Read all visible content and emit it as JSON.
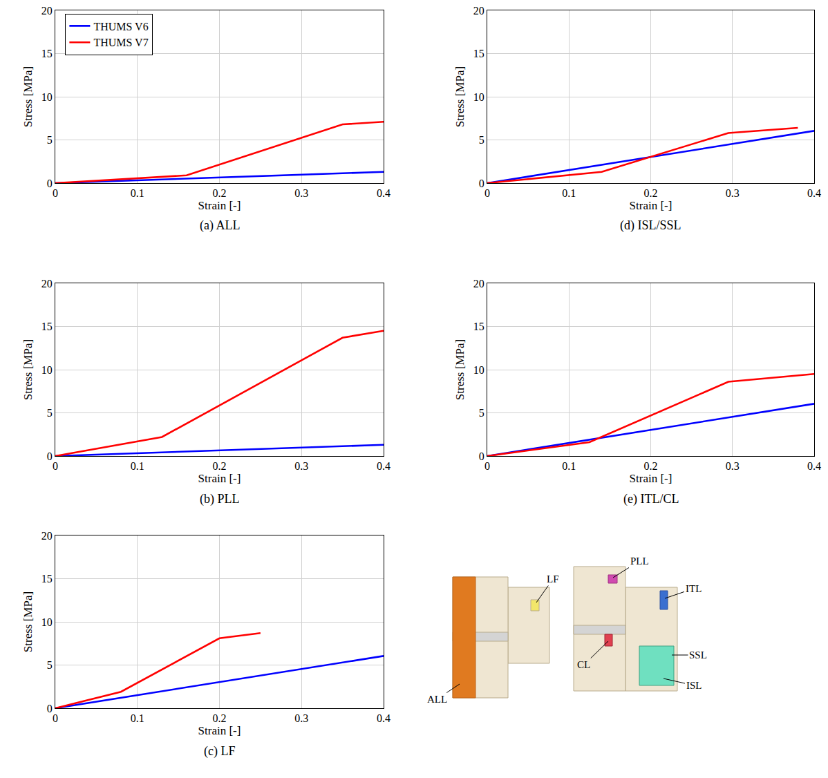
{
  "chart_data": [
    {
      "type": "line",
      "title": "(a) ALL",
      "x_label": "Strain [-]",
      "y_label": "Stress [MPa]",
      "xlim": [
        0,
        0.4
      ],
      "xticks": [
        0,
        0.1,
        0.2,
        0.3,
        0.4
      ],
      "ylim": [
        0,
        20
      ],
      "yticks": [
        0,
        5,
        10,
        15,
        20
      ],
      "grid": true,
      "legend": "upper left",
      "series": [
        {
          "name": "THUMS V6",
          "color": "#0000ff",
          "x": [
            0,
            0.4
          ],
          "values": [
            0,
            1.3
          ]
        },
        {
          "name": "THUMS V7",
          "color": "#ff0000",
          "x": [
            0,
            0.16,
            0.35,
            0.4
          ],
          "values": [
            0,
            0.9,
            6.8,
            7.1
          ]
        }
      ]
    },
    {
      "type": "line",
      "title": "(b) PLL",
      "x_label": "Strain [-]",
      "y_label": "Stress [MPa]",
      "xlim": [
        0,
        0.4
      ],
      "xticks": [
        0,
        0.1,
        0.2,
        0.3,
        0.4
      ],
      "ylim": [
        0,
        20
      ],
      "yticks": [
        0,
        5,
        10,
        15,
        20
      ],
      "grid": true,
      "series": [
        {
          "name": "THUMS V6",
          "color": "#0000ff",
          "x": [
            0,
            0.4
          ],
          "values": [
            0,
            1.3
          ]
        },
        {
          "name": "THUMS V7",
          "color": "#ff0000",
          "x": [
            0,
            0.13,
            0.35,
            0.4
          ],
          "values": [
            0,
            2.2,
            13.7,
            14.5
          ]
        }
      ]
    },
    {
      "type": "line",
      "title": "(c) LF",
      "x_label": "Strain [-]",
      "y_label": "Stress [MPa]",
      "xlim": [
        0,
        0.4
      ],
      "xticks": [
        0,
        0.1,
        0.2,
        0.3,
        0.4
      ],
      "ylim": [
        0,
        20
      ],
      "yticks": [
        0,
        5,
        10,
        15,
        20
      ],
      "grid": true,
      "series": [
        {
          "name": "THUMS V6",
          "color": "#0000ff",
          "x": [
            0,
            0.4
          ],
          "values": [
            0,
            6.05
          ]
        },
        {
          "name": "THUMS V7",
          "color": "#ff0000",
          "x": [
            0,
            0.08,
            0.2,
            0.25
          ],
          "values": [
            0,
            1.9,
            8.1,
            8.7
          ]
        }
      ]
    },
    {
      "type": "line",
      "title": "(d) ISL/SSL",
      "x_label": "Strain [-]",
      "y_label": "Stress [MPa]",
      "xlim": [
        0,
        0.4
      ],
      "xticks": [
        0,
        0.1,
        0.2,
        0.3,
        0.4
      ],
      "ylim": [
        0,
        20
      ],
      "yticks": [
        0,
        5,
        10,
        15,
        20
      ],
      "grid": true,
      "series": [
        {
          "name": "THUMS V6",
          "color": "#0000ff",
          "x": [
            0,
            0.4
          ],
          "values": [
            0,
            6.05
          ]
        },
        {
          "name": "THUMS V7",
          "color": "#ff0000",
          "x": [
            0,
            0.14,
            0.295,
            0.38
          ],
          "values": [
            0,
            1.3,
            5.8,
            6.4
          ]
        }
      ]
    },
    {
      "type": "line",
      "title": "(e) ITL/CL",
      "x_label": "Strain [-]",
      "y_label": "Stress [MPa]",
      "xlim": [
        0,
        0.4
      ],
      "xticks": [
        0,
        0.1,
        0.2,
        0.3,
        0.4
      ],
      "ylim": [
        0,
        20
      ],
      "yticks": [
        0,
        5,
        10,
        15,
        20
      ],
      "grid": true,
      "series": [
        {
          "name": "THUMS V6",
          "color": "#0000ff",
          "x": [
            0,
            0.4
          ],
          "values": [
            0,
            6.05
          ]
        },
        {
          "name": "THUMS V7",
          "color": "#ff0000",
          "x": [
            0,
            0.125,
            0.295,
            0.4
          ],
          "values": [
            0,
            1.6,
            8.6,
            9.5
          ]
        }
      ]
    }
  ],
  "diagram": {
    "labels": [
      "ALL",
      "LF",
      "PLL",
      "ITL",
      "CL",
      "SSL",
      "ISL"
    ]
  }
}
